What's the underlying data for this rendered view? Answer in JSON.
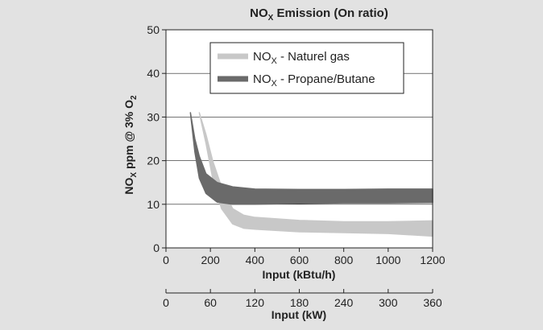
{
  "chart_data": {
    "type": "area",
    "title": {
      "main": "NO",
      "sub": "X",
      "rest": " Emission (On ratio)"
    },
    "ylabel": {
      "p1": "NO",
      "s1": "X",
      "p2": " ppm @ 3% O",
      "s2": "2"
    },
    "xlabel": "Input (kBtu/h)",
    "xlabel2": "Input (kW)",
    "xlim": [
      0,
      1200
    ],
    "ylim": [
      0,
      50
    ],
    "xticks": [
      0,
      200,
      400,
      600,
      800,
      1000,
      1200
    ],
    "yticks": [
      0,
      10,
      20,
      30,
      40,
      50
    ],
    "x2lim": [
      0,
      360
    ],
    "x2ticks": [
      0,
      60,
      120,
      180,
      240,
      300,
      360
    ],
    "grid": true,
    "legend_position": "top-right",
    "series": [
      {
        "name": {
          "p1": "NO",
          "sub": "X",
          "p2": " - Naturel gas"
        },
        "color": "#c8c8c8",
        "upper": [
          [
            150,
            31
          ],
          [
            180,
            26
          ],
          [
            210,
            20
          ],
          [
            250,
            14
          ],
          [
            300,
            9
          ],
          [
            350,
            7.5
          ],
          [
            400,
            7
          ],
          [
            600,
            6.3
          ],
          [
            800,
            6
          ],
          [
            1000,
            6
          ],
          [
            1200,
            6.2
          ]
        ],
        "lower": [
          [
            150,
            31
          ],
          [
            180,
            24
          ],
          [
            210,
            16
          ],
          [
            250,
            9
          ],
          [
            300,
            5.5
          ],
          [
            350,
            4.5
          ],
          [
            400,
            4.3
          ],
          [
            600,
            3.7
          ],
          [
            800,
            3.5
          ],
          [
            1000,
            3.3
          ],
          [
            1200,
            2.7
          ]
        ]
      },
      {
        "name": {
          "p1": "NO",
          "sub": "X",
          "p2": " - Propane/Butane"
        },
        "color": "#6a6a6a",
        "upper": [
          [
            110,
            31
          ],
          [
            130,
            25
          ],
          [
            150,
            21
          ],
          [
            180,
            17
          ],
          [
            230,
            15
          ],
          [
            300,
            14
          ],
          [
            400,
            13.5
          ],
          [
            600,
            13.4
          ],
          [
            800,
            13.4
          ],
          [
            1000,
            13.5
          ],
          [
            1200,
            13.5
          ]
        ],
        "lower": [
          [
            110,
            31
          ],
          [
            130,
            22
          ],
          [
            150,
            16
          ],
          [
            180,
            12.5
          ],
          [
            230,
            10.5
          ],
          [
            300,
            10
          ],
          [
            400,
            10
          ],
          [
            600,
            10.2
          ],
          [
            800,
            10.3
          ],
          [
            1000,
            10.3
          ],
          [
            1200,
            10.4
          ]
        ]
      }
    ]
  }
}
